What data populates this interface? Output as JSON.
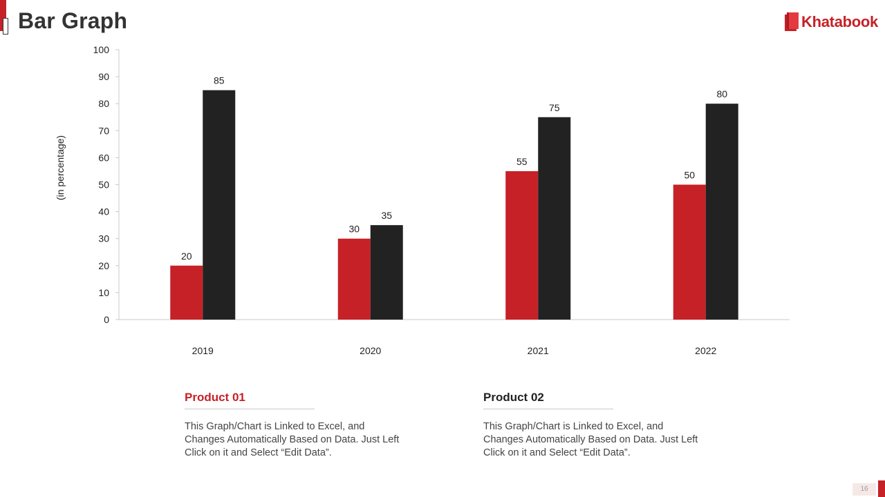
{
  "page": {
    "title": "Bar Graph",
    "page_number": "16"
  },
  "brand": {
    "name": "Khatabook",
    "color": "#c62127",
    "icon": "book-icon"
  },
  "chart_data": {
    "type": "bar",
    "categories": [
      "2019",
      "2020",
      "2021",
      "2022"
    ],
    "series": [
      {
        "name": "Product 01",
        "values": [
          20,
          30,
          55,
          50
        ],
        "color": "#c62127"
      },
      {
        "name": "Product 02",
        "values": [
          85,
          35,
          75,
          80
        ],
        "color": "#222222"
      }
    ],
    "ylabel": "(in percentage)",
    "ylim": [
      0,
      100
    ],
    "yticks": [
      0,
      10,
      20,
      30,
      40,
      50,
      60,
      70,
      80,
      90,
      100
    ],
    "grid": false,
    "data_labels": true
  },
  "legend": [
    {
      "title": "Product 01",
      "color": "#c62127",
      "description": "This Graph/Chart is Linked to Excel, and Changes Automatically Based on Data. Just Left Click on it and Select “Edit Data”."
    },
    {
      "title": "Product 02",
      "color": "#222222",
      "description": "This Graph/Chart is Linked to Excel, and Changes Automatically Based on Data. Just Left Click on it and Select “Edit Data”."
    }
  ]
}
